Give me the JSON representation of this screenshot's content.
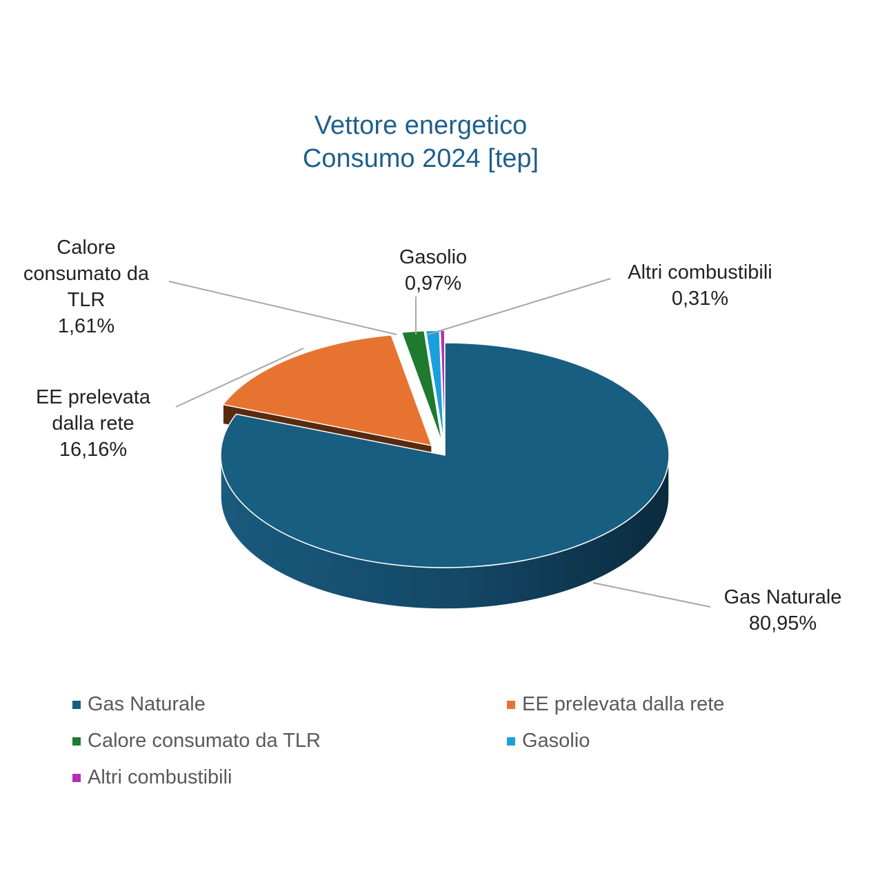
{
  "chart_data": {
    "type": "pie",
    "title": "Vettore energetico",
    "subtitle": "Consumo 2024 [tep]",
    "unit": "%",
    "series": [
      {
        "name": "Gas Naturale",
        "value": 80.95,
        "label_value": "80,95%",
        "color": "#175e80",
        "label_lines": [
          "Gas Naturale"
        ]
      },
      {
        "name": "EE prelevata dalla rete",
        "value": 16.16,
        "label_value": "16,16%",
        "color": "#e77330",
        "label_lines": [
          "EE prelevata",
          "dalla rete"
        ]
      },
      {
        "name": "Calore consumato da TLR",
        "value": 1.61,
        "label_value": "1,61%",
        "color": "#1e7a2e",
        "label_lines": [
          "Calore",
          "consumato da",
          "TLR"
        ]
      },
      {
        "name": "Gasolio",
        "value": 0.97,
        "label_value": "0,97%",
        "color": "#1aa0dd",
        "label_lines": [
          "Gasolio"
        ]
      },
      {
        "name": "Altri combustibili",
        "value": 0.31,
        "label_value": "0,31%",
        "color": "#b22fb5",
        "label_lines": [
          "Altri combustibili"
        ]
      }
    ],
    "legend_position": "bottom"
  }
}
